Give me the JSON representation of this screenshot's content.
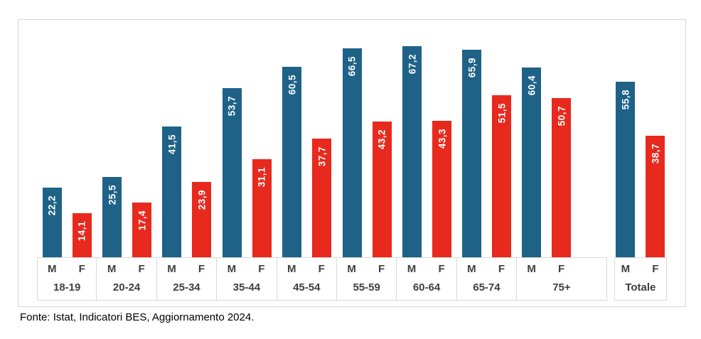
{
  "chart_data": {
    "type": "bar",
    "categories": [
      "18-19",
      "20-24",
      "25-34",
      "35-44",
      "45-54",
      "55-59",
      "60-64",
      "65-74",
      "75+",
      "Totale"
    ],
    "series": [
      {
        "name": "M",
        "color": "#1f6287",
        "values": [
          22.2,
          25.5,
          41.5,
          53.7,
          60.5,
          66.5,
          67.2,
          65.9,
          60.4,
          55.8
        ]
      },
      {
        "name": "F",
        "color": "#e8291d",
        "values": [
          14.1,
          17.4,
          23.9,
          31.1,
          37.7,
          43.2,
          43.3,
          51.5,
          50.7,
          38.7
        ]
      }
    ],
    "title": "",
    "xlabel": "",
    "ylabel": "",
    "ylim": [
      0,
      75
    ],
    "grid": false,
    "legend_position": "none",
    "value_label_style": "inside-top-vertical-white",
    "decimal_separator": ","
  },
  "footer": {
    "source_text": "Fonte: Istat, Indicatori BES, Aggiornamento 2024."
  },
  "colors": {
    "male_bar": "#1f6287",
    "female_bar": "#e8291d",
    "frame_border": "#d6d6d6",
    "cell_border": "#d9d9d9",
    "label_text": "#3f3f3f"
  }
}
